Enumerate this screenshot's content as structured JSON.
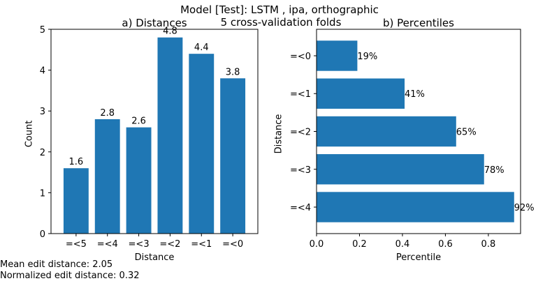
{
  "figure": {
    "suptitle_line1": "Model [Test]: LSTM , ipa, orthographic",
    "suptitle_line2": "5 cross-validation folds",
    "footer_line1": "Mean edit distance: 2.05",
    "footer_line2": "Normalized edit distance: 0.32",
    "bar_color": "#1f77b4"
  },
  "chart_data": [
    {
      "type": "bar",
      "title": "a) Distances",
      "xlabel": "Distance",
      "ylabel": "Count",
      "categories": [
        "=<5",
        "=<4",
        "=<3",
        "=<2",
        "=<1",
        "=<0"
      ],
      "values": [
        1.6,
        2.8,
        2.6,
        4.8,
        4.4,
        3.8
      ],
      "value_labels": [
        "1.6",
        "2.8",
        "2.6",
        "4.8",
        "4.4",
        "3.8"
      ],
      "ylim": [
        0,
        5
      ],
      "yticks": [
        "0",
        "1",
        "2",
        "3",
        "4",
        "5"
      ],
      "grid": false,
      "legend": "none"
    },
    {
      "type": "bar",
      "orientation": "horizontal",
      "title": "b) Percentiles",
      "xlabel": "Percentile",
      "ylabel": "Distance",
      "categories": [
        "=<0",
        "=<1",
        "=<2",
        "=<3",
        "=<4"
      ],
      "values": [
        0.19,
        0.41,
        0.65,
        0.78,
        0.92
      ],
      "value_labels": [
        "19%",
        "41%",
        "65%",
        "78%",
        "92%"
      ],
      "xlim": [
        0,
        0.95
      ],
      "xticks": [
        "0.0",
        "0.2",
        "0.4",
        "0.6",
        "0.8"
      ],
      "grid": false,
      "legend": "none"
    }
  ]
}
